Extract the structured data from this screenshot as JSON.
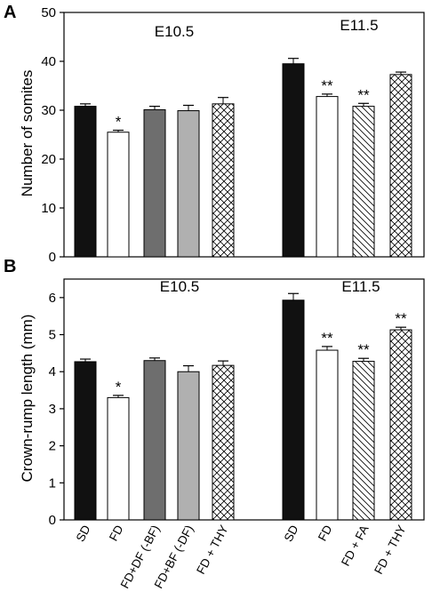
{
  "colors": {
    "SD": "#111111",
    "FD": "#ffffff",
    "FD+DF": "#6e6e6e",
    "FD+BF": "#b0b0b0",
    "axis": "#000000"
  },
  "chart_data": [
    {
      "panel": "A",
      "type": "bar",
      "ylabel": "Number of somites",
      "ylim": [
        0,
        50
      ],
      "yticks": [
        0,
        10,
        20,
        30,
        40,
        50
      ],
      "groups": [
        {
          "label": "E10.5",
          "bars": [
            {
              "category": "SD",
              "value": 30.8,
              "error": 0.5,
              "fill": "solid-black",
              "sig": ""
            },
            {
              "category": "FD",
              "value": 25.5,
              "error": 0.4,
              "fill": "white",
              "sig": "*"
            },
            {
              "category": "FD+DF (-BF)",
              "value": 30.1,
              "error": 0.7,
              "fill": "dark-gray",
              "sig": ""
            },
            {
              "category": "FD+BF (-DF)",
              "value": 29.9,
              "error": 1.1,
              "fill": "light-gray",
              "sig": ""
            },
            {
              "category": "FD + THY",
              "value": 31.3,
              "error": 1.3,
              "fill": "crosshatch",
              "sig": ""
            }
          ]
        },
        {
          "label": "E11.5",
          "bars": [
            {
              "category": "SD",
              "value": 39.5,
              "error": 1.1,
              "fill": "solid-black",
              "sig": ""
            },
            {
              "category": "FD",
              "value": 32.8,
              "error": 0.5,
              "fill": "white",
              "sig": "**"
            },
            {
              "category": "FD + FA",
              "value": 30.8,
              "error": 0.6,
              "fill": "diagonal",
              "sig": "**"
            },
            {
              "category": "FD + THY",
              "value": 37.3,
              "error": 0.5,
              "fill": "crosshatch",
              "sig": ""
            }
          ]
        }
      ]
    },
    {
      "panel": "B",
      "type": "bar",
      "ylabel": "Crown-rump length (mm)",
      "ylim": [
        0,
        6.5
      ],
      "yticks": [
        0,
        1,
        2,
        3,
        4,
        5,
        6
      ],
      "groups": [
        {
          "label": "E10.5",
          "bars": [
            {
              "category": "SD",
              "value": 4.27,
              "error": 0.07,
              "fill": "solid-black",
              "sig": ""
            },
            {
              "category": "FD",
              "value": 3.3,
              "error": 0.06,
              "fill": "white",
              "sig": "*"
            },
            {
              "category": "FD+DF (-BF)",
              "value": 4.3,
              "error": 0.07,
              "fill": "dark-gray",
              "sig": ""
            },
            {
              "category": "FD+BF (-DF)",
              "value": 4.0,
              "error": 0.16,
              "fill": "light-gray",
              "sig": ""
            },
            {
              "category": "FD + THY",
              "value": 4.17,
              "error": 0.12,
              "fill": "crosshatch",
              "sig": ""
            }
          ]
        },
        {
          "label": "E11.5",
          "bars": [
            {
              "category": "SD",
              "value": 5.93,
              "error": 0.18,
              "fill": "solid-black",
              "sig": ""
            },
            {
              "category": "FD",
              "value": 4.58,
              "error": 0.1,
              "fill": "white",
              "sig": "**"
            },
            {
              "category": "FD + FA",
              "value": 4.28,
              "error": 0.08,
              "fill": "diagonal",
              "sig": "**"
            },
            {
              "category": "FD + THY",
              "value": 5.13,
              "error": 0.07,
              "fill": "crosshatch",
              "sig": "**"
            }
          ]
        }
      ]
    }
  ]
}
